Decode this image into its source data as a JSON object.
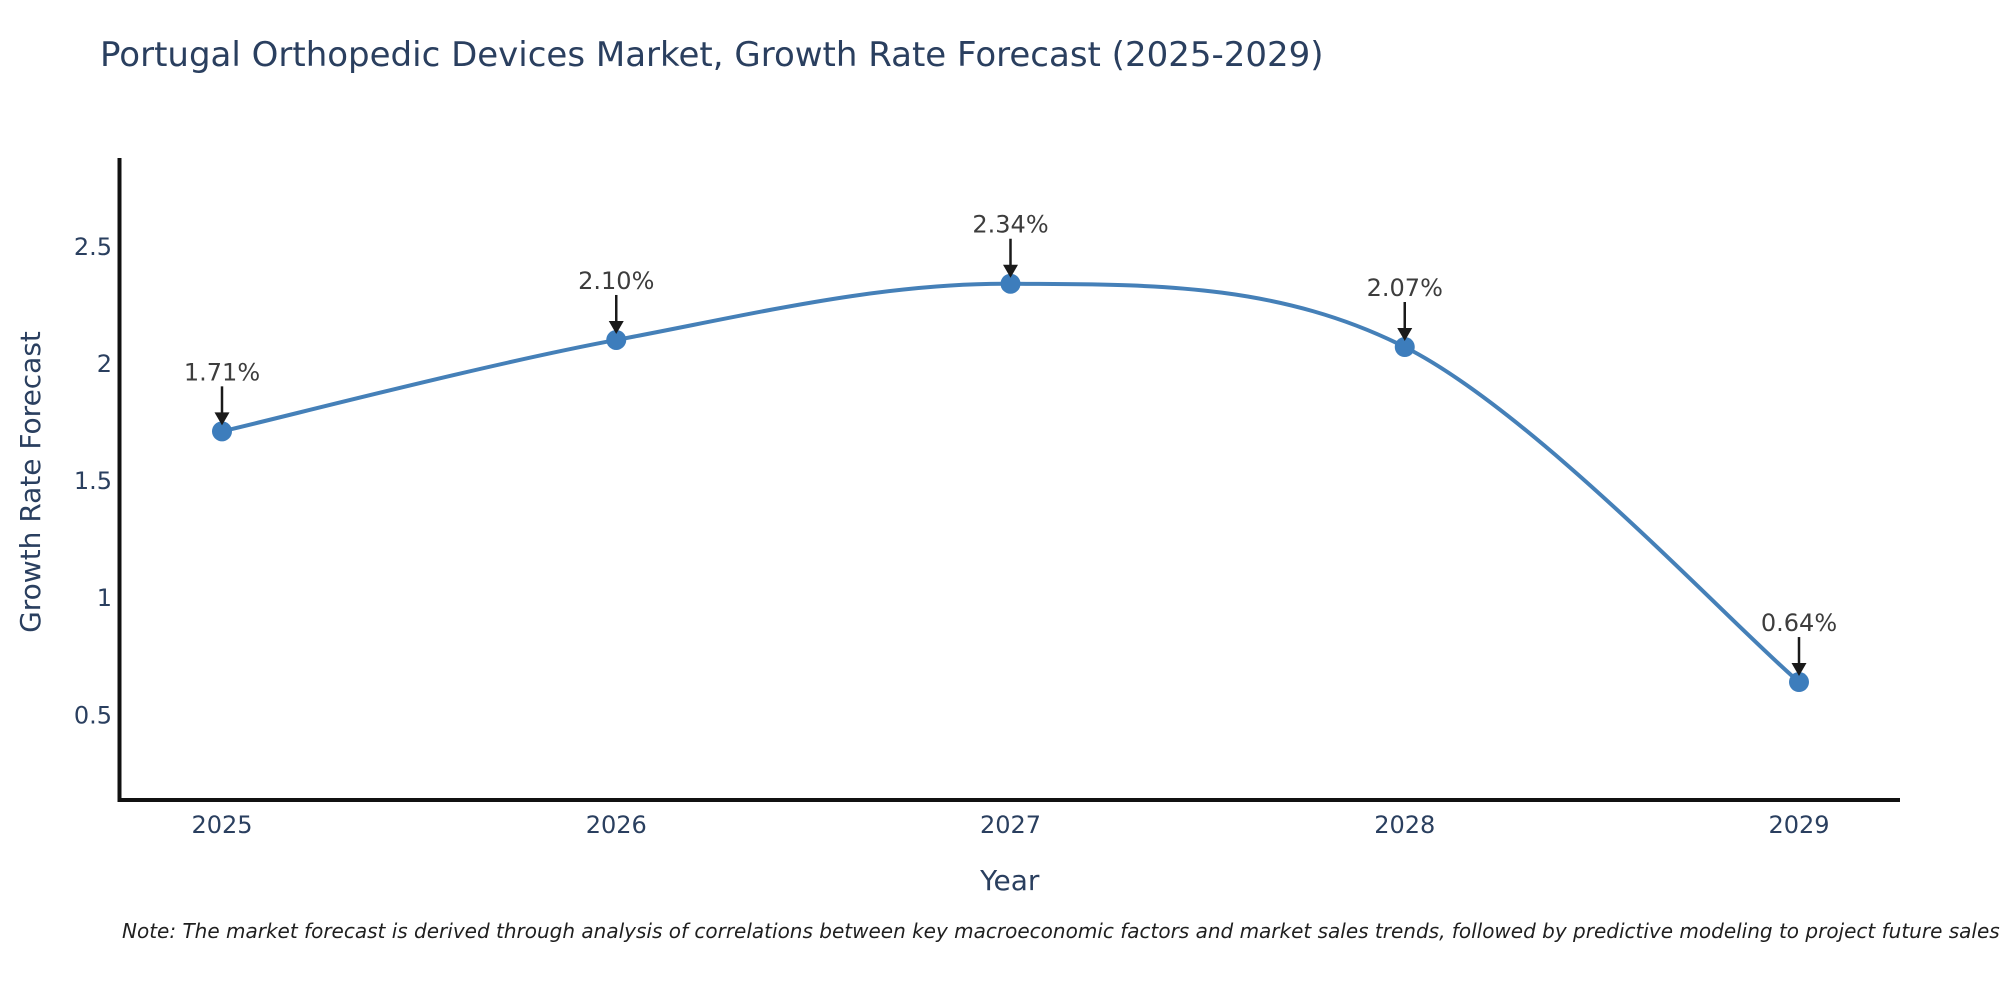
{
  "note": "Note: The market forecast is derived through analysis of correlations between key macroeconomic factors and market sales trends, followed by predictive modeling to project future sales",
  "chart_data": {
    "type": "line",
    "title": "Portugal Orthopedic Devices Market, Growth Rate Forecast (2025-2029)",
    "xlabel": "Year",
    "ylabel": "Growth Rate Forecast",
    "categories": [
      "2025",
      "2026",
      "2027",
      "2028",
      "2029"
    ],
    "values": [
      1.71,
      2.1,
      2.34,
      2.07,
      0.64
    ],
    "point_labels": [
      "1.71%",
      "2.10%",
      "2.34%",
      "2.07%",
      "0.64%"
    ],
    "ytick_values": [
      0.5,
      1,
      1.5,
      2,
      2.5
    ],
    "ytick_labels": [
      "0.5",
      "1",
      "1.5",
      "2",
      "2.5"
    ],
    "ylim": [
      0.14,
      2.87
    ],
    "grid": false,
    "legend": "none",
    "line_shape": "spline",
    "annotation_style": "down-arrow-to-point",
    "colors": {
      "line": "#4580b8",
      "marker": "#3d7dbc",
      "axis": "#111111",
      "tick_text": "#2a3f5f",
      "title_text": "#2a3f5f",
      "annotation_text": "#3d3d3d",
      "arrow": "#1a1a1a",
      "background": "#ffffff"
    }
  }
}
